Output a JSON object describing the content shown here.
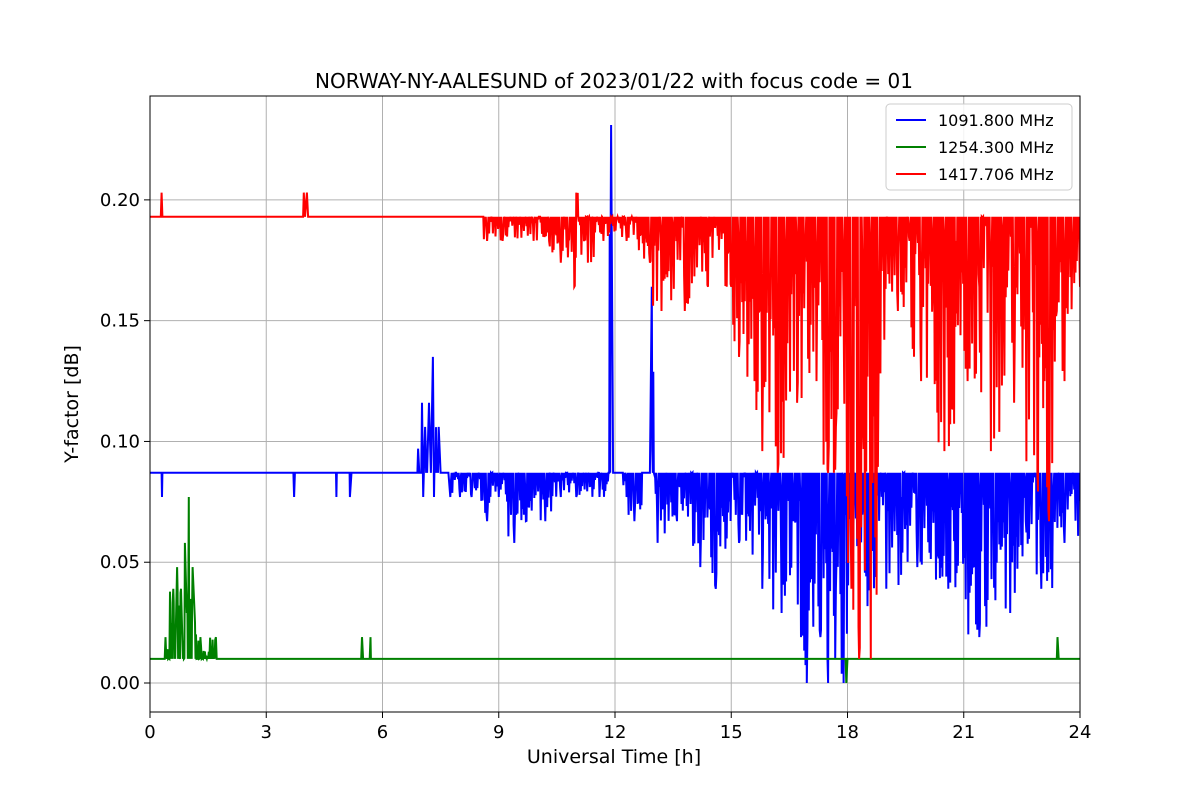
{
  "chart_data": {
    "type": "line",
    "title": "NORWAY-NY-AALESUND of 2023/01/22 with focus code = 01",
    "xlabel": "Universal Time [h]",
    "ylabel": "Y-factor [dB]",
    "xlim": [
      0,
      24
    ],
    "ylim": [
      -0.012,
      0.243
    ],
    "xticks": [
      "0",
      "3",
      "6",
      "9",
      "12",
      "15",
      "18",
      "21",
      "24"
    ],
    "xtick_values": [
      0,
      3,
      6,
      9,
      12,
      15,
      18,
      21,
      24
    ],
    "yticks": [
      "0.00",
      "0.05",
      "0.10",
      "0.15",
      "0.20"
    ],
    "ytick_values": [
      0,
      0.05,
      0.1,
      0.15,
      0.2
    ],
    "grid": true,
    "legend_position": "top-right",
    "series": [
      {
        "name": "1091.800 MHz",
        "color": "#0000ff",
        "baseline": 0.087,
        "points": [
          [
            0,
            0.087
          ],
          [
            0.3,
            0.087
          ],
          [
            0.31,
            0.077
          ],
          [
            0.32,
            0.087
          ],
          [
            3.7,
            0.087
          ],
          [
            3.72,
            0.077
          ],
          [
            3.74,
            0.087
          ],
          [
            4.8,
            0.087
          ],
          [
            4.81,
            0.077
          ],
          [
            4.82,
            0.087
          ],
          [
            5.15,
            0.087
          ],
          [
            5.16,
            0.077
          ],
          [
            5.2,
            0.087
          ],
          [
            6.9,
            0.087
          ],
          [
            6.92,
            0.097
          ],
          [
            6.95,
            0.087
          ],
          [
            7.0,
            0.087
          ],
          [
            7.02,
            0.116
          ],
          [
            7.05,
            0.077
          ],
          [
            7.1,
            0.106
          ],
          [
            7.15,
            0.087
          ],
          [
            7.2,
            0.116
          ],
          [
            7.25,
            0.087
          ],
          [
            7.3,
            0.135
          ],
          [
            7.33,
            0.077
          ],
          [
            7.45,
            0.106
          ],
          [
            7.5,
            0.087
          ],
          [
            7.7,
            0.087
          ],
          [
            7.75,
            0.077
          ],
          [
            7.9,
            0.087
          ],
          [
            8.0,
            0.077
          ],
          [
            8.1,
            0.087
          ],
          [
            8.3,
            0.077
          ],
          [
            8.5,
            0.087
          ],
          [
            8.7,
            0.067
          ],
          [
            8.8,
            0.087
          ],
          [
            9.0,
            0.077
          ],
          [
            9.2,
            0.087
          ],
          [
            9.4,
            0.058
          ],
          [
            9.5,
            0.087
          ],
          [
            9.7,
            0.067
          ],
          [
            9.9,
            0.087
          ],
          [
            10.2,
            0.067
          ],
          [
            10.4,
            0.087
          ],
          [
            10.6,
            0.077
          ],
          [
            10.8,
            0.087
          ],
          [
            11.0,
            0.077
          ],
          [
            11.3,
            0.087
          ],
          [
            11.6,
            0.077
          ],
          [
            11.85,
            0.087
          ],
          [
            11.9,
            0.231
          ],
          [
            11.95,
            0.087
          ],
          [
            12.2,
            0.087
          ],
          [
            12.3,
            0.077
          ],
          [
            12.5,
            0.067
          ],
          [
            12.7,
            0.087
          ],
          [
            12.9,
            0.087
          ],
          [
            12.95,
            0.164
          ],
          [
            13.0,
            0.087
          ],
          [
            13.1,
            0.058
          ],
          [
            13.3,
            0.087
          ],
          [
            13.6,
            0.067
          ],
          [
            14.0,
            0.087
          ],
          [
            14.2,
            0.048
          ],
          [
            14.4,
            0.077
          ],
          [
            14.6,
            0.039
          ],
          [
            14.9,
            0.087
          ],
          [
            15.2,
            0.058
          ],
          [
            15.5,
            0.087
          ],
          [
            15.8,
            0.039
          ],
          [
            16.0,
            0.077
          ],
          [
            16.3,
            0.029
          ],
          [
            16.6,
            0.067
          ],
          [
            16.8,
            0.019
          ],
          [
            16.95,
            0.0
          ],
          [
            17.1,
            0.058
          ],
          [
            17.3,
            0.019
          ],
          [
            17.5,
            0.0
          ],
          [
            17.7,
            0.039
          ],
          [
            17.9,
            0.0
          ],
          [
            18.0,
            0.087
          ],
          [
            18.3,
            0.029
          ],
          [
            18.6,
            0.058
          ],
          [
            19.0,
            0.039
          ],
          [
            19.4,
            0.077
          ],
          [
            19.8,
            0.048
          ],
          [
            20.2,
            0.087
          ],
          [
            20.6,
            0.039
          ],
          [
            21.0,
            0.067
          ],
          [
            21.4,
            0.019
          ],
          [
            21.8,
            0.058
          ],
          [
            22.2,
            0.029
          ],
          [
            22.6,
            0.067
          ],
          [
            23.0,
            0.039
          ],
          [
            23.3,
            0.077
          ],
          [
            23.6,
            0.058
          ],
          [
            24.0,
            0.077
          ]
        ]
      },
      {
        "name": "1254.300 MHz",
        "color": "#008000",
        "baseline": 0.01,
        "points": [
          [
            0,
            0.01
          ],
          [
            0.38,
            0.01
          ],
          [
            0.4,
            0.019
          ],
          [
            0.5,
            0.01
          ],
          [
            0.6,
            0.039
          ],
          [
            0.65,
            0.01
          ],
          [
            0.7,
            0.048
          ],
          [
            0.75,
            0.019
          ],
          [
            0.8,
            0.039
          ],
          [
            0.85,
            0.01
          ],
          [
            0.9,
            0.058
          ],
          [
            0.95,
            0.029
          ],
          [
            1.0,
            0.077
          ],
          [
            1.05,
            0.019
          ],
          [
            1.1,
            0.048
          ],
          [
            1.15,
            0.029
          ],
          [
            1.2,
            0.01
          ],
          [
            1.3,
            0.019
          ],
          [
            1.5,
            0.01
          ],
          [
            1.7,
            0.019
          ],
          [
            1.72,
            0.01
          ],
          [
            5.45,
            0.01
          ],
          [
            5.47,
            0.019
          ],
          [
            5.5,
            0.01
          ],
          [
            5.67,
            0.01
          ],
          [
            5.69,
            0.019
          ],
          [
            5.7,
            0.01
          ],
          [
            17.95,
            0.01
          ],
          [
            17.97,
            0.0
          ],
          [
            18.0,
            0.01
          ],
          [
            23.4,
            0.01
          ],
          [
            23.42,
            0.019
          ],
          [
            23.45,
            0.01
          ],
          [
            24.0,
            0.01
          ]
        ]
      },
      {
        "name": "1417.706 MHz",
        "color": "#ff0000",
        "baseline": 0.193,
        "points": [
          [
            0,
            0.193
          ],
          [
            0.28,
            0.193
          ],
          [
            0.3,
            0.203
          ],
          [
            0.32,
            0.193
          ],
          [
            3.95,
            0.193
          ],
          [
            3.97,
            0.203
          ],
          [
            4.0,
            0.193
          ],
          [
            4.05,
            0.203
          ],
          [
            4.08,
            0.193
          ],
          [
            8.6,
            0.193
          ],
          [
            8.7,
            0.183
          ],
          [
            8.9,
            0.193
          ],
          [
            9.1,
            0.183
          ],
          [
            9.3,
            0.193
          ],
          [
            9.9,
            0.183
          ],
          [
            10.0,
            0.193
          ],
          [
            10.3,
            0.183
          ],
          [
            10.6,
            0.174
          ],
          [
            10.8,
            0.183
          ],
          [
            10.95,
            0.164
          ],
          [
            11.0,
            0.203
          ],
          [
            11.05,
            0.193
          ],
          [
            11.3,
            0.174
          ],
          [
            11.5,
            0.193
          ],
          [
            11.7,
            0.183
          ],
          [
            11.9,
            0.193
          ],
          [
            12.3,
            0.183
          ],
          [
            12.6,
            0.193
          ],
          [
            12.9,
            0.174
          ],
          [
            13.2,
            0.154
          ],
          [
            13.5,
            0.183
          ],
          [
            13.8,
            0.154
          ],
          [
            14.1,
            0.193
          ],
          [
            14.4,
            0.164
          ],
          [
            14.7,
            0.193
          ],
          [
            15.0,
            0.164
          ],
          [
            15.2,
            0.135
          ],
          [
            15.4,
            0.183
          ],
          [
            15.6,
            0.125
          ],
          [
            15.8,
            0.096
          ],
          [
            16.0,
            0.164
          ],
          [
            16.2,
            0.087
          ],
          [
            16.4,
            0.154
          ],
          [
            16.7,
            0.116
          ],
          [
            16.9,
            0.183
          ],
          [
            17.2,
            0.125
          ],
          [
            17.5,
            0.087
          ],
          [
            17.7,
            0.106
          ],
          [
            17.9,
            0.154
          ],
          [
            18.1,
            0.039
          ],
          [
            18.3,
            0.01
          ],
          [
            18.4,
            0.106
          ],
          [
            18.6,
            0.01
          ],
          [
            18.8,
            0.125
          ],
          [
            19.0,
            0.193
          ],
          [
            19.3,
            0.154
          ],
          [
            19.6,
            0.183
          ],
          [
            19.9,
            0.125
          ],
          [
            20.2,
            0.164
          ],
          [
            20.5,
            0.096
          ],
          [
            20.8,
            0.183
          ],
          [
            21.1,
            0.125
          ],
          [
            21.4,
            0.164
          ],
          [
            21.7,
            0.096
          ],
          [
            22.0,
            0.154
          ],
          [
            22.3,
            0.116
          ],
          [
            22.6,
            0.164
          ],
          [
            22.9,
            0.087
          ],
          [
            23.2,
            0.067
          ],
          [
            23.4,
            0.154
          ],
          [
            23.6,
            0.125
          ],
          [
            23.8,
            0.183
          ],
          [
            24.0,
            0.164
          ]
        ]
      }
    ]
  }
}
